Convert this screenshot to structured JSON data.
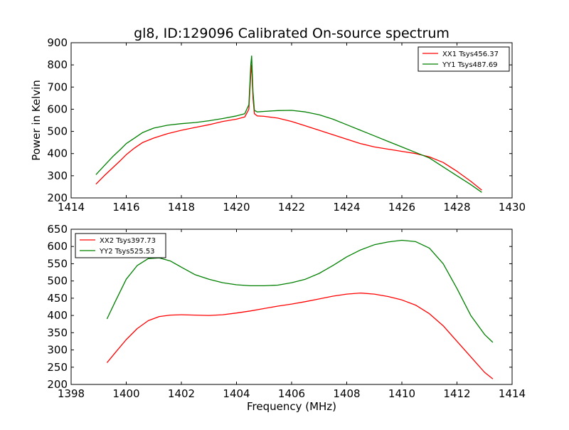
{
  "figure": {
    "title": "gl8, ID:129096 Calibrated On-source spectrum"
  },
  "chart_data": [
    {
      "type": "line",
      "title": "gl8, ID:129096 Calibrated On-source spectrum",
      "xlabel": "",
      "ylabel": "Power in Kelvin",
      "xlim": [
        1414,
        1430
      ],
      "ylim": [
        200,
        900
      ],
      "xticks": [
        "1414",
        "1416",
        "1418",
        "1420",
        "1422",
        "1424",
        "1426",
        "1428",
        "1430"
      ],
      "yticks": [
        "200",
        "300",
        "400",
        "500",
        "600",
        "700",
        "800",
        "900"
      ],
      "legend_position": "top-right",
      "grid": false,
      "series": [
        {
          "name": "XX1 Tsys456.37",
          "color": "#ff0000",
          "x": [
            1414.9,
            1415.2,
            1415.5,
            1415.8,
            1416.0,
            1416.3,
            1416.6,
            1417.0,
            1417.5,
            1418.0,
            1418.5,
            1419.0,
            1419.5,
            1420.0,
            1420.3,
            1420.45,
            1420.52,
            1420.55,
            1420.6,
            1420.65,
            1420.75,
            1421.0,
            1421.5,
            1422.0,
            1422.5,
            1423.0,
            1423.5,
            1424.0,
            1424.5,
            1425.0,
            1425.5,
            1426.0,
            1426.5,
            1427.0,
            1427.5,
            1428.0,
            1428.5,
            1428.9
          ],
          "y": [
            262,
            300,
            335,
            370,
            395,
            425,
            450,
            470,
            490,
            505,
            518,
            530,
            545,
            555,
            565,
            600,
            760,
            800,
            650,
            580,
            570,
            568,
            560,
            545,
            525,
            505,
            485,
            465,
            445,
            430,
            420,
            410,
            400,
            385,
            360,
            320,
            275,
            235
          ]
        },
        {
          "name": "YY1 Tsys487.69",
          "color": "#008000",
          "x": [
            1414.9,
            1415.2,
            1415.5,
            1415.8,
            1416.0,
            1416.3,
            1416.6,
            1417.0,
            1417.5,
            1418.0,
            1418.5,
            1419.0,
            1419.5,
            1420.0,
            1420.3,
            1420.45,
            1420.52,
            1420.55,
            1420.6,
            1420.65,
            1420.75,
            1421.0,
            1421.5,
            1422.0,
            1422.5,
            1423.0,
            1423.5,
            1424.0,
            1424.5,
            1425.0,
            1425.5,
            1426.0,
            1426.5,
            1427.0,
            1427.5,
            1428.0,
            1428.5,
            1428.9
          ],
          "y": [
            305,
            345,
            385,
            420,
            445,
            470,
            495,
            515,
            528,
            535,
            540,
            548,
            558,
            570,
            580,
            620,
            800,
            840,
            680,
            595,
            588,
            590,
            594,
            595,
            588,
            575,
            555,
            530,
            505,
            480,
            455,
            430,
            405,
            380,
            340,
            300,
            260,
            225
          ]
        }
      ]
    },
    {
      "type": "line",
      "title": "",
      "xlabel": "Frequency (MHz)",
      "ylabel": "",
      "xlim": [
        1398,
        1414
      ],
      "ylim": [
        200,
        650
      ],
      "xticks": [
        "1398",
        "1400",
        "1402",
        "1404",
        "1406",
        "1408",
        "1410",
        "1412",
        "1414"
      ],
      "yticks": [
        "200",
        "250",
        "300",
        "350",
        "400",
        "450",
        "500",
        "550",
        "600",
        "650"
      ],
      "legend_position": "top-left",
      "grid": false,
      "series": [
        {
          "name": "XX2 Tsys397.73",
          "color": "#ff0000",
          "x": [
            1399.3,
            1399.6,
            1400.0,
            1400.4,
            1400.8,
            1401.2,
            1401.6,
            1402.0,
            1402.5,
            1403.0,
            1403.5,
            1404.0,
            1404.5,
            1405.0,
            1405.5,
            1406.0,
            1406.5,
            1407.0,
            1407.5,
            1408.0,
            1408.5,
            1409.0,
            1409.5,
            1410.0,
            1410.5,
            1411.0,
            1411.5,
            1412.0,
            1412.5,
            1413.0,
            1413.3
          ],
          "y": [
            263,
            292,
            330,
            362,
            385,
            397,
            401,
            402,
            401,
            400,
            402,
            407,
            413,
            420,
            427,
            433,
            440,
            448,
            456,
            462,
            465,
            462,
            455,
            445,
            430,
            405,
            370,
            325,
            280,
            235,
            216
          ]
        },
        {
          "name": "YY2 Tsys525.53",
          "color": "#008000",
          "x": [
            1399.3,
            1399.6,
            1400.0,
            1400.4,
            1400.8,
            1401.2,
            1401.6,
            1402.0,
            1402.5,
            1403.0,
            1403.5,
            1404.0,
            1404.5,
            1405.0,
            1405.5,
            1406.0,
            1406.5,
            1407.0,
            1407.5,
            1408.0,
            1408.5,
            1409.0,
            1409.5,
            1410.0,
            1410.5,
            1411.0,
            1411.5,
            1412.0,
            1412.5,
            1413.0,
            1413.3
          ],
          "y": [
            390,
            440,
            505,
            545,
            565,
            567,
            558,
            540,
            518,
            505,
            495,
            489,
            486,
            486,
            488,
            495,
            505,
            522,
            545,
            570,
            590,
            605,
            613,
            618,
            614,
            595,
            550,
            478,
            400,
            345,
            322
          ]
        }
      ]
    }
  ]
}
